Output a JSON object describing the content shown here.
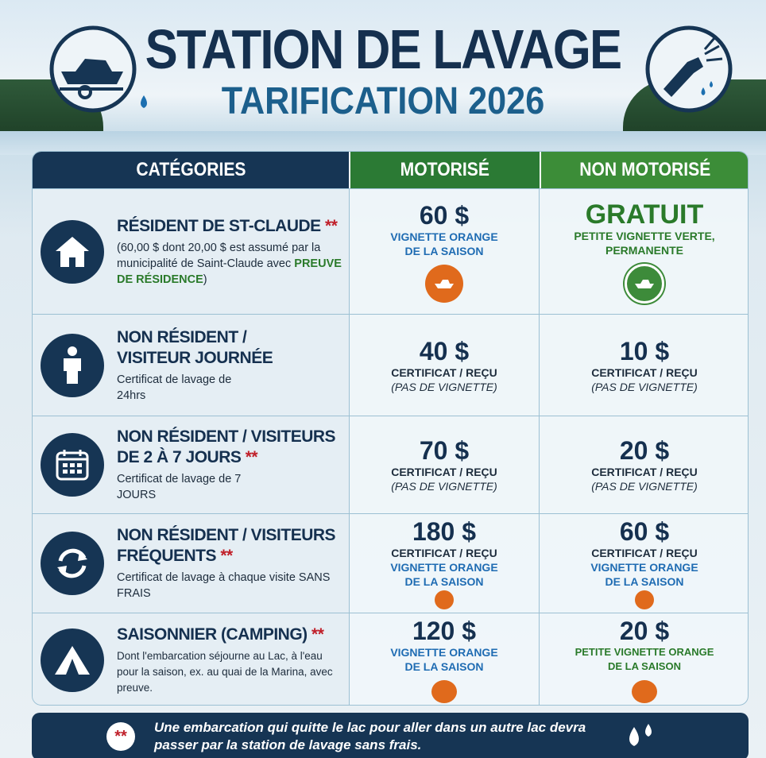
{
  "header": {
    "title": "STATION DE LAVAGE",
    "subtitle": "TARIFICATION 2026"
  },
  "table": {
    "headers": [
      "CATÉGORIES",
      "MOTORISÉ",
      "NON MOTORISÉ"
    ],
    "rows": [
      {
        "category": {
          "name": "RÉSIDENT DE ST-CLAUDE",
          "mark": "**",
          "description": "(60,00 $ dont 20,00 $ est assumé par la municipalité de Saint-Claude avec",
          "description_highlight": "PREUVE DE RÉSIDENCE",
          "description_end": ")"
        },
        "motorise": {
          "price": "60 $",
          "lines": [
            "VIGNETTE ORANGE DE LA SAISON"
          ]
        },
        "non_motorise": {
          "price": "GRATUIT",
          "lines": [
            "PETITE VIGNETTE VERTE, PERMANENTE"
          ]
        }
      },
      {
        "category": {
          "name": "NON RÉSIDENT / VISITEUR JOURNÉE",
          "description": "Certificat de lavage de 24hrs"
        },
        "motorise": {
          "price": "40 $",
          "lines": [
            "CERTIFICAT / REÇU",
            "(PAS DE VIGNETTE)"
          ]
        },
        "non_motorise": {
          "price": "10 $",
          "lines": [
            "CERTIFICAT / REÇU",
            "(PAS DE VIGNETTE)"
          ]
        }
      },
      {
        "category": {
          "name": "NON RÉSIDENT / VISITEURS DE 2 À 7 JOURS",
          "mark": "**",
          "description": "Certificat de lavage de 7 JOURS"
        },
        "motorise": {
          "price": "70 $",
          "lines": [
            "CERTIFICAT / REÇU",
            "(PAS DE VIGNETTE)"
          ]
        },
        "non_motorise": {
          "price": "20 $",
          "lines": [
            "CERTIFICAT / REÇU",
            "(PAS DE VIGNETTE)"
          ]
        }
      },
      {
        "category": {
          "name": "NON RÉSIDENT / VISITEURS FRÉQUENTS",
          "mark": "**",
          "description": "Certificat de lavage à chaque visite SANS FRAIS"
        },
        "motorise": {
          "price": "180 $",
          "lines": [
            "CERTIFICAT / REÇU",
            "VIGNETTE ORANGE DE LA SAISON"
          ]
        },
        "non_motorise": {
          "price": "60 $",
          "lines": [
            "CERTIFICAT / REÇU",
            "VIGNETTE ORANGE DE LA SAISON"
          ]
        }
      },
      {
        "category": {
          "name": "SAISONNIER (CAMPING)",
          "mark": "**",
          "description": "Dont l'embarcation séjourne au Lac, à l'eau pour la saison, ex. au quai de la Marina, avec preuve."
        },
        "motorise": {
          "price": "120 $",
          "lines": [
            "VIGNETTE ORANGE DE LA SAISON"
          ]
        },
        "non_motorise": {
          "price": "20 $",
          "lines": [
            "PETITE VIGNETTE ORANGE DE LA SAISON"
          ]
        }
      }
    ]
  },
  "footer": {
    "mark": "**",
    "text": "Une embarcation qui quitte le lac pour aller dans un autre lac devra passer par la station de lavage sans frais."
  }
}
